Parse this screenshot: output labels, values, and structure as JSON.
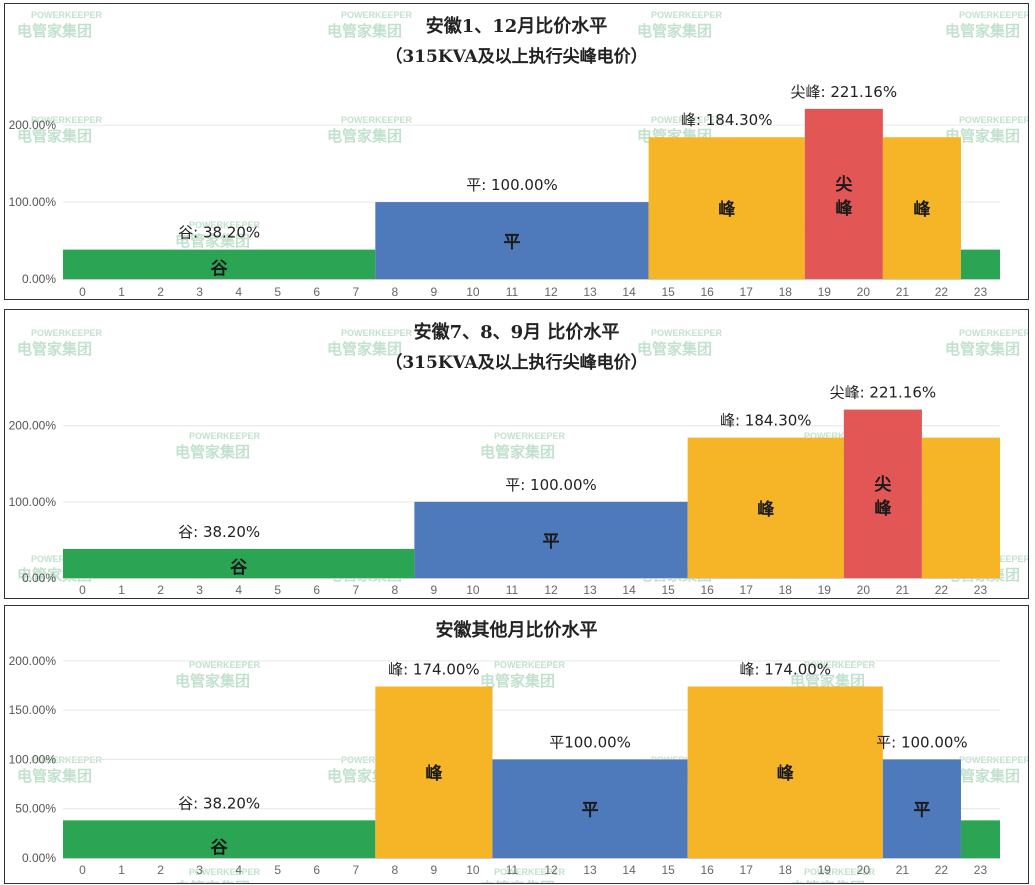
{
  "watermark": {
    "en": "POWERKEEPER",
    "cn": "电管家集团"
  },
  "colors": {
    "谷": "#2ba553",
    "平": "#4e7abc",
    "峰": "#f6b526",
    "尖峰": "#e25656",
    "grid": "#e6e6e6",
    "axis": "#cccccc"
  },
  "chart_data": [
    {
      "type": "bar",
      "title": "安徽1、12月比价水平",
      "subtitle": "（315KVA及以上执行尖峰电价）",
      "x": [
        "0",
        "1",
        "2",
        "3",
        "4",
        "5",
        "6",
        "7",
        "8",
        "9",
        "10",
        "11",
        "12",
        "13",
        "14",
        "15",
        "16",
        "17",
        "18",
        "19",
        "20",
        "21",
        "22",
        "23"
      ],
      "yticks": [
        "0.00%",
        "100.00%",
        "200.00%"
      ],
      "ylim": [
        0,
        260
      ],
      "grid": true,
      "segments": [
        {
          "from": 0,
          "to": 7,
          "value": 38.2,
          "tier": "谷",
          "label": "谷: 38.20%",
          "text": "谷"
        },
        {
          "from": 8,
          "to": 14,
          "value": 100.0,
          "tier": "平",
          "label": "平: 100.00%",
          "text": "平"
        },
        {
          "from": 15,
          "to": 18,
          "value": 184.3,
          "tier": "峰",
          "label": "峰: 184.30%",
          "text": "峰"
        },
        {
          "from": 19,
          "to": 20,
          "value": 221.16,
          "tier": "尖峰",
          "label": "尖峰: 221.16%",
          "text": "尖峰"
        },
        {
          "from": 21,
          "to": 22,
          "value": 184.3,
          "tier": "峰",
          "label": "",
          "text": "峰"
        },
        {
          "from": 23,
          "to": 23,
          "value": 38.2,
          "tier": "谷",
          "label": "",
          "text": ""
        }
      ]
    },
    {
      "type": "bar",
      "title": "安徽7、8、9月 比价水平",
      "subtitle": "（315KVA及以上执行尖峰电价）",
      "x": [
        "0",
        "1",
        "2",
        "3",
        "4",
        "5",
        "6",
        "7",
        "8",
        "9",
        "10",
        "11",
        "12",
        "13",
        "14",
        "15",
        "16",
        "17",
        "18",
        "19",
        "20",
        "21",
        "22",
        "23"
      ],
      "yticks": [
        "0.00%",
        "100.00%",
        "200.00%"
      ],
      "ylim": [
        0,
        260
      ],
      "grid": true,
      "segments": [
        {
          "from": 0,
          "to": 8,
          "value": 38.2,
          "tier": "谷",
          "label": "谷: 38.20%",
          "text": "谷"
        },
        {
          "from": 9,
          "to": 15,
          "value": 100.0,
          "tier": "平",
          "label": "平: 100.00%",
          "text": "平"
        },
        {
          "from": 16,
          "to": 19,
          "value": 184.3,
          "tier": "峰",
          "label": "峰: 184.30%",
          "text": "峰"
        },
        {
          "from": 20,
          "to": 21,
          "value": 221.16,
          "tier": "尖峰",
          "label": "尖峰: 221.16%",
          "text": "尖峰"
        },
        {
          "from": 22,
          "to": 23,
          "value": 184.3,
          "tier": "峰",
          "label": "",
          "text": ""
        }
      ]
    },
    {
      "type": "bar",
      "title": "安徽其他月比价水平",
      "subtitle": "",
      "x": [
        "0",
        "1",
        "2",
        "3",
        "4",
        "5",
        "6",
        "7",
        "8",
        "9",
        "10",
        "11",
        "12",
        "13",
        "14",
        "15",
        "16",
        "17",
        "18",
        "19",
        "20",
        "21",
        "22",
        "23"
      ],
      "yticks": [
        "0.00%",
        "50.00%",
        "100.00%",
        "150.00%",
        "200.00%"
      ],
      "ylim": [
        0,
        210
      ],
      "grid": true,
      "segments": [
        {
          "from": 0,
          "to": 7,
          "value": 38.2,
          "tier": "谷",
          "label": "谷: 38.20%",
          "text": "谷"
        },
        {
          "from": 8,
          "to": 10,
          "value": 174.0,
          "tier": "峰",
          "label": "峰: 174.00%",
          "text": "峰"
        },
        {
          "from": 11,
          "to": 15,
          "value": 100.0,
          "tier": "平",
          "label": "平100.00%",
          "text": "平"
        },
        {
          "from": 16,
          "to": 20,
          "value": 174.0,
          "tier": "峰",
          "label": "峰: 174.00%",
          "text": "峰"
        },
        {
          "from": 21,
          "to": 22,
          "value": 100.0,
          "tier": "平",
          "label": "平: 100.00%",
          "text": "平"
        },
        {
          "from": 23,
          "to": 23,
          "value": 38.2,
          "tier": "谷",
          "label": "",
          "text": ""
        }
      ]
    }
  ]
}
